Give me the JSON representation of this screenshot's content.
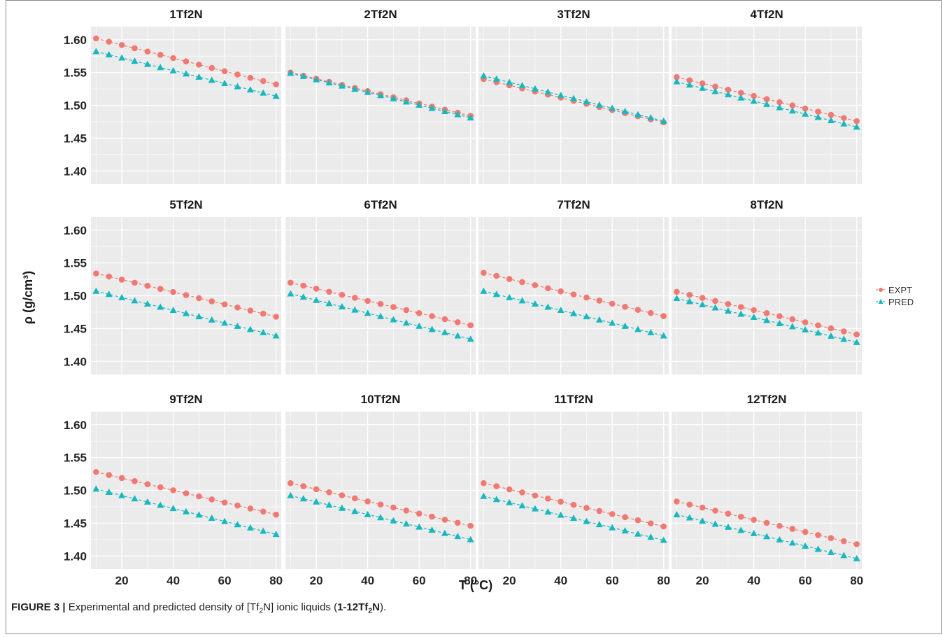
{
  "figure": {
    "caption_label": "FIGURE 3 |",
    "caption_pre": "Experimental and predicted density of [Tf",
    "caption_sub1": "2",
    "caption_mid": "N] ionic liquids (",
    "caption_bold_a": "1-12Tf",
    "caption_sub2": "2",
    "caption_bold_b": "N",
    "caption_end": ")."
  },
  "colors": {
    "expt": "#F07A73",
    "pred": "#1AB8BE",
    "panel_bg": "#EBEBEB",
    "grid": "#FFFFFF"
  },
  "chart_data": {
    "type": "scatter",
    "layout": "facet 3x4",
    "xlabel": "T (°C)",
    "ylabel": "ρ (g/cm³)",
    "xlim": [
      8,
      82
    ],
    "ylim": [
      1.38,
      1.62
    ],
    "xticks": [
      20,
      40,
      60,
      80
    ],
    "yticks": [
      1.4,
      1.45,
      1.5,
      1.55,
      1.6
    ],
    "xtick_labels": [
      "20",
      "40",
      "60",
      "80"
    ],
    "ytick_labels": [
      "1.40",
      "1.45",
      "1.50",
      "1.55",
      "1.60"
    ],
    "x_start": 10,
    "x_end": 80,
    "x_step": 5,
    "legend": {
      "position": "right",
      "items": [
        "EXPT",
        "PRED"
      ]
    },
    "grid": true,
    "panels": [
      {
        "title": "1Tf2N",
        "expt": [
          1.602,
          1.532
        ],
        "pred": [
          1.582,
          1.514
        ]
      },
      {
        "title": "2Tf2N",
        "expt": [
          1.55,
          1.484
        ],
        "pred": [
          1.549,
          1.481
        ]
      },
      {
        "title": "3Tf2N",
        "expt": [
          1.54,
          1.474
        ],
        "pred": [
          1.545,
          1.476
        ]
      },
      {
        "title": "4Tf2N",
        "expt": [
          1.543,
          1.476
        ],
        "pred": [
          1.536,
          1.467
        ]
      },
      {
        "title": "5Tf2N",
        "expt": [
          1.534,
          1.468
        ],
        "pred": [
          1.507,
          1.439
        ]
      },
      {
        "title": "6Tf2N",
        "expt": [
          1.52,
          1.455
        ],
        "pred": [
          1.503,
          1.434
        ]
      },
      {
        "title": "7Tf2N",
        "expt": [
          1.535,
          1.469
        ],
        "pred": [
          1.507,
          1.439
        ]
      },
      {
        "title": "8Tf2N",
        "expt": [
          1.506,
          1.441
        ],
        "pred": [
          1.496,
          1.429
        ]
      },
      {
        "title": "9Tf2N",
        "expt": [
          1.528,
          1.463
        ],
        "pred": [
          1.502,
          1.433
        ]
      },
      {
        "title": "10Tf2N",
        "expt": [
          1.511,
          1.446
        ],
        "pred": [
          1.492,
          1.425
        ]
      },
      {
        "title": "11Tf2N",
        "expt": [
          1.511,
          1.445
        ],
        "pred": [
          1.491,
          1.424
        ]
      },
      {
        "title": "12Tf2N",
        "expt": [
          1.483,
          1.418
        ],
        "pred": [
          1.463,
          1.396
        ]
      }
    ]
  }
}
